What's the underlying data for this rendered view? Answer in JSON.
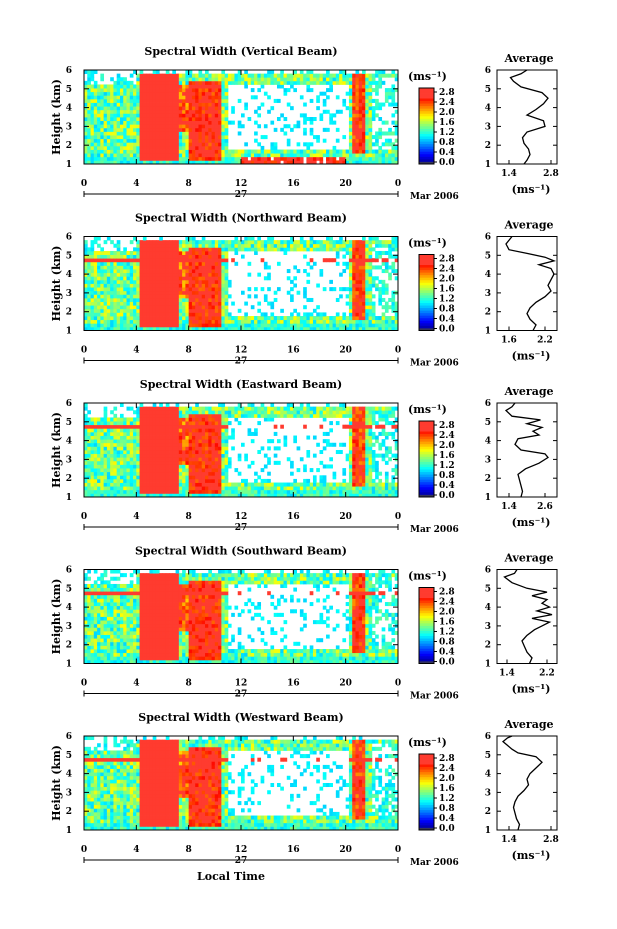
{
  "chart_data": [
    {
      "type": "heatmap",
      "title": "Spectral Width (Vertical Beam)",
      "ylabel": "Height (km)",
      "xticks": [
        "0",
        "4",
        "8",
        "12",
        "16",
        "20",
        "0"
      ],
      "yticks": [
        "1",
        "2",
        "3",
        "4",
        "5",
        "6"
      ],
      "xlim": [
        0,
        24
      ],
      "ylim": [
        1,
        6
      ],
      "date_day": "27",
      "date_label": "Mar 2006",
      "colorbar": {
        "unit": "(ms⁻¹)",
        "ticks": [
          "0.0",
          "0.4",
          "0.8",
          "1.2",
          "1.6",
          "2.0",
          "2.4",
          "2.8"
        ],
        "range": [
          0,
          3.0
        ]
      },
      "average": {
        "title": "Average",
        "xlabel": "(ms⁻¹)",
        "xticks": [
          "1.4",
          "2.8"
        ],
        "xlim": [
          1.0,
          3.0
        ],
        "yticks": [
          "1",
          "2",
          "3",
          "4",
          "5",
          "6"
        ],
        "profile": [
          [
            1.9,
            1.0
          ],
          [
            2.0,
            1.2
          ],
          [
            2.1,
            1.5
          ],
          [
            2.05,
            1.8
          ],
          [
            1.9,
            2.1
          ],
          [
            1.85,
            2.4
          ],
          [
            2.0,
            2.7
          ],
          [
            2.6,
            3.0
          ],
          [
            2.55,
            3.3
          ],
          [
            2.0,
            3.6
          ],
          [
            2.3,
            3.9
          ],
          [
            2.55,
            4.2
          ],
          [
            2.7,
            4.5
          ],
          [
            2.5,
            4.8
          ],
          [
            1.8,
            5.1
          ],
          [
            1.55,
            5.4
          ],
          [
            1.45,
            5.6
          ],
          [
            1.8,
            5.8
          ],
          [
            2.0,
            6.0
          ]
        ]
      }
    },
    {
      "type": "heatmap",
      "title": "Spectral Width (Northward Beam)",
      "ylabel": "Height (km)",
      "xticks": [
        "0",
        "4",
        "8",
        "12",
        "16",
        "20",
        "0"
      ],
      "yticks": [
        "1",
        "2",
        "3",
        "4",
        "5",
        "6"
      ],
      "xlim": [
        0,
        24
      ],
      "ylim": [
        1,
        6
      ],
      "date_day": "27",
      "date_label": "Mar 2006",
      "colorbar": {
        "unit": "(ms⁻¹)",
        "ticks": [
          "0.0",
          "0.4",
          "0.8",
          "1.2",
          "1.6",
          "2.0",
          "2.4",
          "2.8"
        ],
        "range": [
          0,
          3.0
        ]
      },
      "average": {
        "title": "Average",
        "xlabel": "(ms⁻¹)",
        "xticks": [
          "1.6",
          "2.2"
        ],
        "xlim": [
          1.4,
          2.4
        ],
        "yticks": [
          "1",
          "2",
          "3",
          "4",
          "5",
          "6"
        ],
        "profile": [
          [
            2.0,
            1.0
          ],
          [
            2.05,
            1.3
          ],
          [
            1.95,
            1.6
          ],
          [
            1.9,
            1.9
          ],
          [
            1.95,
            2.2
          ],
          [
            2.05,
            2.5
          ],
          [
            2.2,
            2.8
          ],
          [
            2.3,
            3.1
          ],
          [
            2.25,
            3.4
          ],
          [
            2.3,
            3.7
          ],
          [
            2.35,
            4.0
          ],
          [
            2.3,
            4.3
          ],
          [
            2.1,
            4.5
          ],
          [
            2.35,
            4.7
          ],
          [
            2.2,
            4.9
          ],
          [
            1.9,
            5.1
          ],
          [
            1.6,
            5.3
          ],
          [
            1.55,
            5.6
          ],
          [
            1.65,
            6.0
          ]
        ]
      }
    },
    {
      "type": "heatmap",
      "title": "Spectral Width (Eastward Beam)",
      "ylabel": "Height (km)",
      "xticks": [
        "0",
        "4",
        "8",
        "12",
        "16",
        "20",
        "0"
      ],
      "yticks": [
        "1",
        "2",
        "3",
        "4",
        "5",
        "6"
      ],
      "xlim": [
        0,
        24
      ],
      "ylim": [
        1,
        6
      ],
      "date_day": "27",
      "date_label": "Mar 2006",
      "colorbar": {
        "unit": "(ms⁻¹)",
        "ticks": [
          "0.0",
          "0.4",
          "0.8",
          "1.2",
          "1.6",
          "2.0",
          "2.4",
          "2.8"
        ],
        "range": [
          0,
          3.0
        ]
      },
      "average": {
        "title": "Average",
        "xlabel": "(ms⁻¹)",
        "xticks": [
          "1.4",
          "2.6"
        ],
        "xlim": [
          1.0,
          3.0
        ],
        "yticks": [
          "1",
          "2",
          "3",
          "4",
          "5",
          "6"
        ],
        "profile": [
          [
            1.8,
            1.0
          ],
          [
            1.85,
            1.3
          ],
          [
            1.8,
            1.6
          ],
          [
            1.75,
            1.9
          ],
          [
            1.7,
            2.2
          ],
          [
            1.95,
            2.5
          ],
          [
            2.4,
            2.8
          ],
          [
            2.7,
            3.1
          ],
          [
            2.6,
            3.3
          ],
          [
            1.8,
            3.5
          ],
          [
            1.6,
            3.8
          ],
          [
            1.7,
            4.1
          ],
          [
            2.4,
            4.3
          ],
          [
            2.2,
            4.5
          ],
          [
            2.5,
            4.7
          ],
          [
            2.0,
            4.9
          ],
          [
            2.45,
            5.1
          ],
          [
            1.5,
            5.3
          ],
          [
            1.3,
            5.6
          ],
          [
            1.5,
            5.8
          ],
          [
            1.6,
            6.0
          ]
        ]
      }
    },
    {
      "type": "heatmap",
      "title": "Spectral Width (Southward Beam)",
      "ylabel": "Height (km)",
      "xticks": [
        "0",
        "4",
        "8",
        "12",
        "16",
        "20",
        "0"
      ],
      "yticks": [
        "1",
        "2",
        "3",
        "4",
        "5",
        "6"
      ],
      "xlim": [
        0,
        24
      ],
      "ylim": [
        1,
        6
      ],
      "date_day": "27",
      "date_label": "Mar 2006",
      "colorbar": {
        "unit": "(ms⁻¹)",
        "ticks": [
          "0.0",
          "0.4",
          "0.8",
          "1.2",
          "1.6",
          "2.0",
          "2.4",
          "2.8"
        ],
        "range": [
          0,
          3.0
        ]
      },
      "average": {
        "title": "Average",
        "xlabel": "(ms⁻¹)",
        "xticks": [
          "1.4",
          "2.2"
        ],
        "xlim": [
          1.2,
          2.4
        ],
        "yticks": [
          "1",
          "2",
          "3",
          "4",
          "5",
          "6"
        ],
        "profile": [
          [
            1.85,
            1.0
          ],
          [
            1.9,
            1.3
          ],
          [
            1.8,
            1.6
          ],
          [
            1.75,
            1.9
          ],
          [
            1.7,
            2.2
          ],
          [
            1.8,
            2.5
          ],
          [
            1.95,
            2.8
          ],
          [
            2.1,
            3.0
          ],
          [
            2.25,
            3.2
          ],
          [
            1.9,
            3.4
          ],
          [
            2.3,
            3.6
          ],
          [
            2.0,
            3.8
          ],
          [
            2.25,
            4.0
          ],
          [
            2.1,
            4.2
          ],
          [
            2.2,
            4.4
          ],
          [
            1.9,
            4.6
          ],
          [
            2.2,
            4.8
          ],
          [
            1.8,
            5.0
          ],
          [
            1.5,
            5.3
          ],
          [
            1.35,
            5.6
          ],
          [
            1.55,
            5.8
          ],
          [
            1.6,
            6.0
          ]
        ]
      }
    },
    {
      "type": "heatmap",
      "title": "Spectral Width (Westward Beam)",
      "ylabel": "Height (km)",
      "xlabel": "Local Time",
      "xticks": [
        "0",
        "4",
        "8",
        "12",
        "16",
        "20",
        "0"
      ],
      "yticks": [
        "1",
        "2",
        "3",
        "4",
        "5",
        "6"
      ],
      "xlim": [
        0,
        24
      ],
      "ylim": [
        1,
        6
      ],
      "date_day": "27",
      "date_label": "Mar 2006",
      "colorbar": {
        "unit": "(ms⁻¹)",
        "ticks": [
          "0.0",
          "0.4",
          "0.8",
          "1.2",
          "1.6",
          "2.0",
          "2.4",
          "2.8"
        ],
        "range": [
          0,
          3.0
        ]
      },
      "average": {
        "title": "Average",
        "xlabel": "(ms⁻¹)",
        "xticks": [
          "1.4",
          "2.8"
        ],
        "xlim": [
          1.0,
          3.0
        ],
        "yticks": [
          "1",
          "2",
          "3",
          "4",
          "5",
          "6"
        ],
        "profile": [
          [
            1.7,
            1.0
          ],
          [
            1.75,
            1.3
          ],
          [
            1.65,
            1.6
          ],
          [
            1.6,
            1.9
          ],
          [
            1.55,
            2.2
          ],
          [
            1.6,
            2.5
          ],
          [
            1.7,
            2.8
          ],
          [
            1.9,
            3.1
          ],
          [
            2.05,
            3.4
          ],
          [
            2.0,
            3.7
          ],
          [
            2.1,
            4.0
          ],
          [
            2.3,
            4.3
          ],
          [
            2.5,
            4.6
          ],
          [
            2.3,
            4.9
          ],
          [
            1.7,
            5.1
          ],
          [
            1.5,
            5.3
          ],
          [
            1.35,
            5.5
          ],
          [
            1.2,
            5.7
          ],
          [
            1.35,
            5.9
          ],
          [
            1.5,
            6.0
          ]
        ]
      }
    }
  ]
}
